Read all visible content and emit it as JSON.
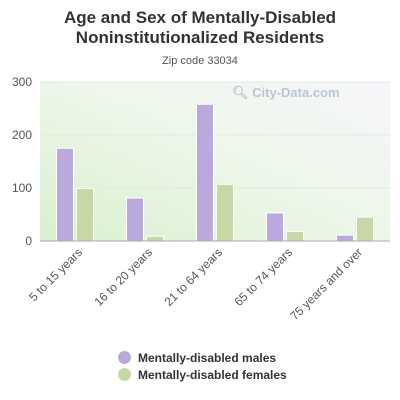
{
  "title": "Age and Sex of Mentally-Disabled Noninstitutionalized Residents",
  "subtitle": "Zip code 33034",
  "watermark": "City-Data.com",
  "colors": {
    "males": "#bba8dc",
    "females": "#c6d9a5",
    "grid": "#e4e8e0",
    "axis": "#aaaaaa"
  },
  "chart_data": {
    "type": "bar",
    "categories": [
      "5 to 15 years",
      "16 to 20 years",
      "21 to 64 years",
      "65 to 74 years",
      "75 years and over"
    ],
    "series": [
      {
        "name": "Mentally-disabled males",
        "values": [
          175,
          81,
          258,
          53,
          11
        ]
      },
      {
        "name": "Mentally-disabled females",
        "values": [
          99,
          9,
          107,
          18,
          45
        ]
      }
    ],
    "ylim": [
      0,
      300
    ],
    "yticks": [
      0,
      100,
      200,
      300
    ],
    "grid": true,
    "legend": "bottom"
  }
}
